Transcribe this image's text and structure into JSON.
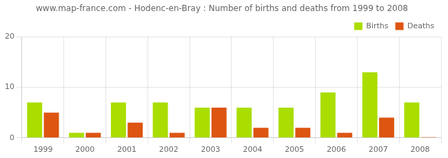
{
  "chart_data": {
    "type": "bar",
    "title": "www.map-france.com - Hodenc-en-Bray : Number of births and deaths from 1999 to 2008",
    "categories": [
      "1999",
      "2000",
      "2001",
      "2002",
      "2003",
      "2004",
      "2005",
      "2006",
      "2007",
      "2008"
    ],
    "series": [
      {
        "name": "Births",
        "color": "#aadd00",
        "values": [
          7,
          1,
          7,
          7,
          6,
          6,
          6,
          9,
          13,
          7
        ]
      },
      {
        "name": "Deaths",
        "color": "#dd5511",
        "values": [
          5,
          1,
          3,
          1,
          6,
          2,
          2,
          1,
          4,
          0.15
        ]
      }
    ],
    "ylim": [
      0,
      20
    ],
    "yticks": [
      0,
      10,
      20
    ],
    "grid": true,
    "legend": "upper right"
  }
}
